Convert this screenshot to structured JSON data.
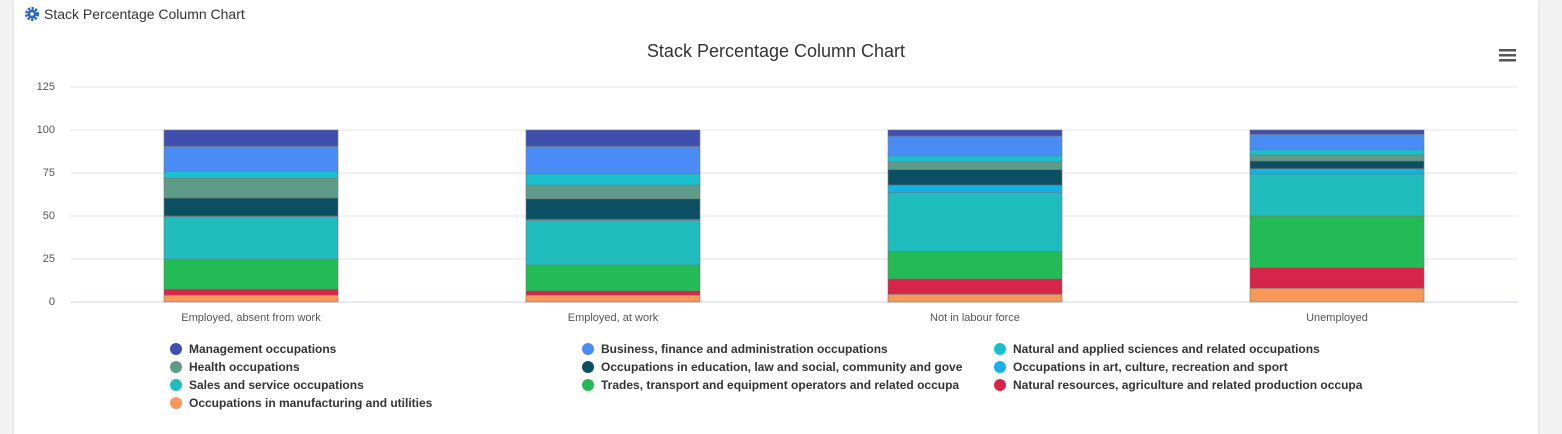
{
  "header": {
    "title": "Stack Percentage Column Chart"
  },
  "chart_data": {
    "type": "stacked-bar",
    "title": "Stack Percentage Column Chart",
    "categories": [
      "Employed, absent from work",
      "Employed, at work",
      "Not in labour force",
      "Unemployed"
    ],
    "series": [
      {
        "name": "Management occupations",
        "color": "#3f4fae",
        "values": [
          9.5,
          9.5,
          3.5,
          2.5
        ]
      },
      {
        "name": "Business, finance and administration occupations",
        "color": "#4a8cf5",
        "values": [
          14.5,
          16,
          11.5,
          9
        ]
      },
      {
        "name": "Natural and applied sciences and related occupations",
        "color": "#19c1d0",
        "values": [
          4,
          6.5,
          3.5,
          3
        ]
      },
      {
        "name": "Health occupations",
        "color": "#5e9b88",
        "values": [
          11.5,
          8,
          4.5,
          3.5
        ]
      },
      {
        "name": "Occupations in education, law and social, community and gove",
        "color": "#0b4f63",
        "values": [
          10.5,
          12,
          9,
          4.5
        ]
      },
      {
        "name": "Occupations in art, culture, recreation and sport",
        "color": "#14b0e6",
        "values": [
          0.5,
          0.5,
          4.5,
          3
        ]
      },
      {
        "name": "Sales and service occupations",
        "color": "#1fbdbd",
        "values": [
          24.5,
          26,
          34,
          24.5
        ]
      },
      {
        "name": "Trades, transport and equipment operators and related occupa",
        "color": "#22bb55",
        "values": [
          17.5,
          15,
          16,
          30
        ]
      },
      {
        "name": "Natural resources, agriculture and related production occupa",
        "color": "#d7254a",
        "values": [
          3.5,
          2.5,
          9,
          12
        ]
      },
      {
        "name": "Occupations in manufacturing and utilities",
        "color": "#f7985a",
        "values": [
          4,
          4,
          4.5,
          8
        ]
      }
    ],
    "ylim": [
      0,
      125
    ],
    "yticks": [
      0,
      25,
      50,
      75,
      100,
      125
    ],
    "grid": true
  }
}
